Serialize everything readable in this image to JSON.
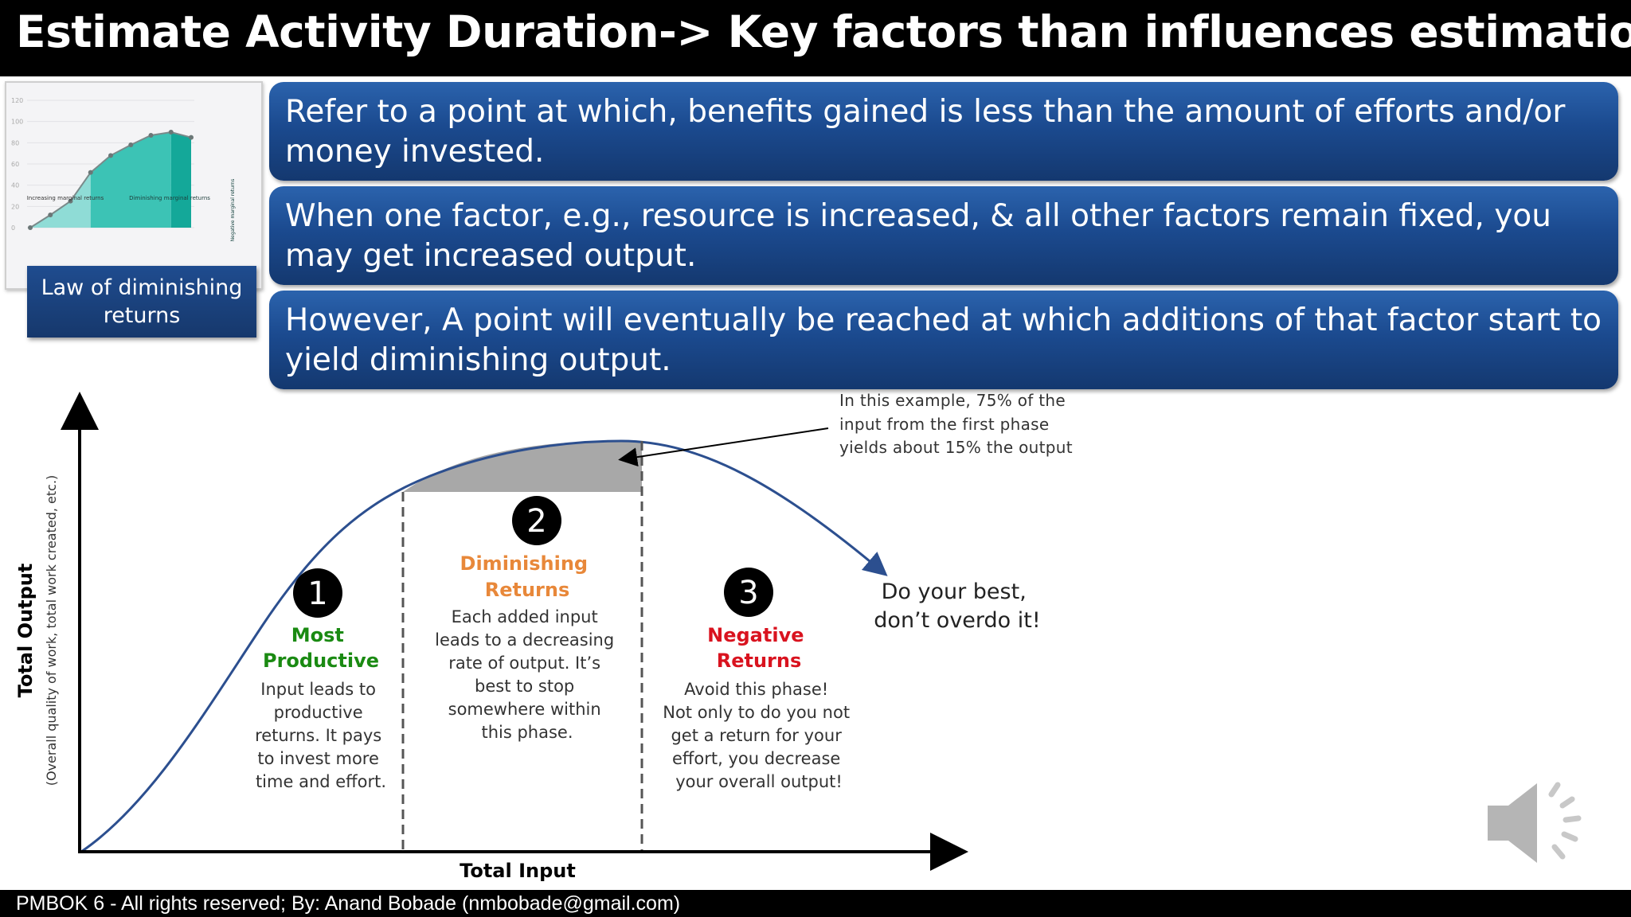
{
  "title": "Estimate Activity Duration-> Key factors than influences estimation:",
  "thumbnail": {
    "y_ticks": [
      "120",
      "100",
      "80",
      "60",
      "40",
      "20",
      "0"
    ],
    "zone_labels": [
      "Increasing marginal returns",
      "Diminishing marginal returns",
      "Negative marginal returns"
    ],
    "caption": "Law of diminishing returns",
    "curve_y": [
      0,
      12,
      25,
      52,
      68,
      78,
      87,
      90,
      85
    ],
    "y_max": 120
  },
  "points": [
    "Refer to a point at which, benefits gained is less than the amount of efforts and/or money invested.",
    "When one factor, e.g., resource is increased, & all other factors remain fixed, you may get increased output.",
    "However, A point will eventually be reached at which additions of that factor start to yield diminishing output."
  ],
  "diagram": {
    "y_axis_title": "Total Output",
    "y_axis_subtitle": "(Overall quality of work, total work created, etc.)",
    "x_axis_title": "Total Input",
    "callout": [
      "In this example, 75% of the",
      "input from the first phase",
      "yields about 15% the output"
    ],
    "advice": [
      "Do your best,",
      "don’t overdo it!"
    ],
    "phases": [
      {
        "number": "1",
        "title": [
          "Most",
          "Productive"
        ],
        "title_color": "#1a8a12",
        "body": [
          "Input leads to",
          "productive",
          "returns. It pays",
          "to invest more",
          "time and effort."
        ]
      },
      {
        "number": "2",
        "title": [
          "Diminishing",
          "Returns"
        ],
        "title_color": "#e8883a",
        "body": [
          "Each added input",
          "leads to a decreasing",
          "rate of output. It’s",
          "best to stop",
          "somewhere within",
          "this phase."
        ]
      },
      {
        "number": "3",
        "title": [
          "Negative",
          "Returns"
        ],
        "title_color": "#d9131f",
        "body": [
          "Avoid this phase!",
          "Not only to do you not",
          "get a return for your",
          "effort, you decrease",
          "your overall output!"
        ]
      }
    ]
  },
  "footer": "PMBOK 6 - All rights reserved; By: Anand Bobade (nmbobade@gmail.com)",
  "colors": {
    "box_blue": "#1b4a8f",
    "curve": "#2c4f8f",
    "shade": "#a8a8a8"
  }
}
